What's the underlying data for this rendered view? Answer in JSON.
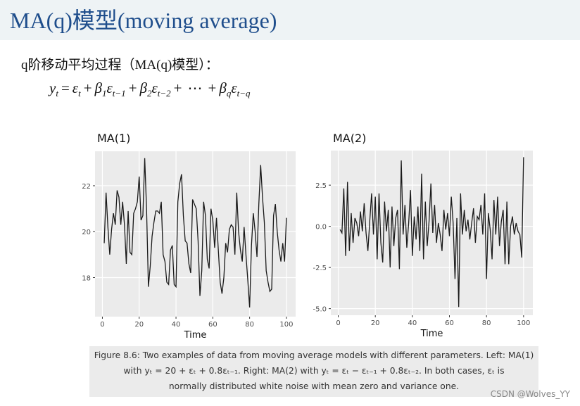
{
  "slide": {
    "title": "MA(q)模型(moving average)",
    "intro": "q阶移动平均过程（MA(q)模型）：",
    "formula": [
      {
        "base": "y",
        "sub": "t"
      },
      "=",
      {
        "base": "ε",
        "sub": "t"
      },
      "+",
      {
        "base": "β",
        "sub": "1"
      },
      {
        "base": "ε",
        "sub": "t−1"
      },
      "+",
      {
        "base": "β",
        "sub": "2"
      },
      {
        "base": "ε",
        "sub": "t−2"
      },
      "+",
      "⋯",
      "+",
      {
        "base": "β",
        "sub": "q"
      },
      {
        "base": "ε",
        "sub": "t−q"
      }
    ],
    "caption": [
      "Figure 8.6: Two examples of data from moving average models with different parameters. Left: MA(1)",
      "with yₜ = 20 + εₜ + 0.8εₜ₋₁. Right: MA(2) with yₜ = εₜ − εₜ₋₁ + 0.8εₜ₋₂. In both cases, εₜ is",
      "normally distributed white noise with mean zero and variance one."
    ],
    "watermark": "CSDN @Wolves_YY"
  },
  "chart_data": [
    {
      "type": "line",
      "title": "MA(1)",
      "xlabel": "Time",
      "color": "#1a1a1a",
      "grid": true,
      "x": [
        1,
        2,
        3,
        4,
        5,
        6,
        7,
        8,
        9,
        10,
        11,
        12,
        13,
        14,
        15,
        16,
        17,
        18,
        19,
        20,
        21,
        22,
        23,
        24,
        25,
        26,
        27,
        28,
        29,
        30,
        31,
        32,
        33,
        34,
        35,
        36,
        37,
        38,
        39,
        40,
        41,
        42,
        43,
        44,
        45,
        46,
        47,
        48,
        49,
        50,
        51,
        52,
        53,
        54,
        55,
        56,
        57,
        58,
        59,
        60,
        61,
        62,
        63,
        64,
        65,
        66,
        67,
        68,
        69,
        70,
        71,
        72,
        73,
        74,
        75,
        76,
        77,
        78,
        79,
        80,
        81,
        82,
        83,
        84,
        85,
        86,
        87,
        88,
        89,
        90,
        91,
        92,
        93,
        94,
        95,
        96,
        97,
        98,
        99,
        100
      ],
      "values": [
        19.5,
        21.7,
        20.2,
        19.0,
        20.1,
        20.8,
        20.3,
        21.8,
        21.5,
        20.3,
        21.3,
        20.3,
        18.6,
        20.9,
        19.1,
        19.0,
        20.8,
        21.0,
        21.3,
        22.4,
        20.5,
        20.7,
        23.2,
        21.0,
        17.6,
        18.5,
        19.8,
        20.4,
        20.9,
        20.9,
        20.8,
        21.3,
        19.0,
        18.7,
        17.8,
        17.7,
        19.2,
        19.4,
        17.7,
        17.6,
        21.3,
        22.1,
        22.5,
        20.7,
        19.6,
        19.5,
        18.6,
        18.2,
        21.4,
        21.2,
        21.0,
        19.6,
        17.2,
        18.3,
        21.3,
        20.7,
        18.8,
        18.4,
        21.0,
        20.5,
        19.3,
        20.6,
        19.2,
        17.8,
        17.3,
        18.0,
        19.5,
        19.1,
        20.1,
        20.3,
        20.2,
        19.0,
        21.7,
        20.0,
        19.2,
        18.7,
        20.2,
        19.0,
        17.9,
        16.7,
        19.4,
        20.8,
        20.0,
        18.9,
        21.2,
        22.9,
        21.5,
        20.4,
        18.3,
        17.8,
        17.4,
        17.5,
        20.7,
        21.2,
        20.0,
        19.2,
        18.7,
        19.5,
        18.7,
        20.6
      ],
      "xlim": [
        -4,
        105
      ],
      "xticks": [
        0,
        20,
        40,
        60,
        80,
        100
      ],
      "ylim": [
        16.3,
        23.5
      ],
      "yticks": [
        18,
        20,
        22
      ]
    },
    {
      "type": "line",
      "title": "MA(2)",
      "xlabel": "Time",
      "color": "#1a1a1a",
      "grid": true,
      "x": [
        1,
        2,
        3,
        4,
        5,
        6,
        7,
        8,
        9,
        10,
        11,
        12,
        13,
        14,
        15,
        16,
        17,
        18,
        19,
        20,
        21,
        22,
        23,
        24,
        25,
        26,
        27,
        28,
        29,
        30,
        31,
        32,
        33,
        34,
        35,
        36,
        37,
        38,
        39,
        40,
        41,
        42,
        43,
        44,
        45,
        46,
        47,
        48,
        49,
        50,
        51,
        52,
        53,
        54,
        55,
        56,
        57,
        58,
        59,
        60,
        61,
        62,
        63,
        64,
        65,
        66,
        67,
        68,
        69,
        70,
        71,
        72,
        73,
        74,
        75,
        76,
        77,
        78,
        79,
        80,
        81,
        82,
        83,
        84,
        85,
        86,
        87,
        88,
        89,
        90,
        91,
        92,
        93,
        94,
        95,
        96,
        97,
        98,
        99,
        100
      ],
      "values": [
        -0.2,
        -0.4,
        2.3,
        -1.8,
        2.7,
        -1.5,
        0.8,
        -1.0,
        0.5,
        0.2,
        -0.6,
        0.9,
        -0.3,
        1.4,
        -0.4,
        -1.5,
        0.3,
        2.0,
        -0.5,
        1.8,
        -2.0,
        2.0,
        -1.0,
        -2.2,
        1.5,
        -0.3,
        1.0,
        -2.5,
        1.2,
        -1.2,
        0.5,
        1.0,
        -2.6,
        4.0,
        -0.5,
        1.3,
        -1.3,
        0.2,
        2.2,
        -1.8,
        0.6,
        -0.8,
        1.2,
        -1.5,
        3.2,
        -2.0,
        1.5,
        -1.2,
        0.3,
        2.6,
        -0.4,
        1.3,
        -1.0,
        0.2,
        -0.5,
        -1.5,
        1.0,
        -0.2,
        0.8,
        -0.6,
        1.8,
        0.2,
        -3.2,
        0.5,
        -4.9,
        2.0,
        -0.5,
        1.0,
        -0.3,
        0.4,
        -0.8,
        0.2,
        1.1,
        -1.0,
        0.6,
        0.4,
        1.3,
        -0.5,
        2.0,
        -3.2,
        0.8,
        -0.2,
        -2.0,
        1.6,
        -0.5,
        1.8,
        -1.2,
        0.3,
        1.0,
        -2.3,
        1.5,
        -2.3,
        0.0,
        0.6,
        -0.5,
        0.2,
        -0.3,
        -0.5,
        -1.9,
        4.2
      ],
      "xlim": [
        -4,
        105
      ],
      "xticks": [
        0,
        20,
        40,
        60,
        80,
        100
      ],
      "ylim": [
        -5.4,
        4.6
      ],
      "yticks": [
        {
          "value": -5,
          "label": "-5.0"
        },
        -2.5,
        {
          "value": 0,
          "label": "0.0"
        },
        2.5
      ]
    }
  ]
}
